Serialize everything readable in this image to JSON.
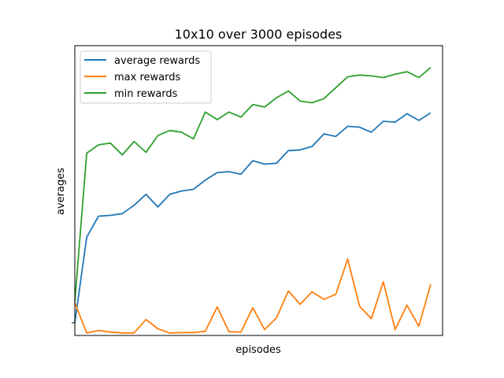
{
  "chart_data": {
    "type": "line",
    "title": "10x10 over 3000 episodes",
    "xlabel": "episodes",
    "ylabel": "averages",
    "xlim": [
      0,
      31
    ],
    "ylim": [
      -1.5,
      33
    ],
    "x_ticks_shown": false,
    "y_ticks_shown": false,
    "y_tick_marks": [
      0
    ],
    "grid": false,
    "legend_position": "upper-left",
    "x": [
      0,
      1,
      2,
      3,
      4,
      5,
      6,
      7,
      8,
      9,
      10,
      11,
      12,
      13,
      14,
      15,
      16,
      17,
      18,
      19,
      20,
      21,
      22,
      23,
      24,
      25,
      26,
      27,
      28,
      29,
      30
    ],
    "series": [
      {
        "name": "average rewards",
        "color": "#1f77b4",
        "values": [
          0,
          10.2,
          12.7,
          12.8,
          13.0,
          14.0,
          15.3,
          13.8,
          15.3,
          15.7,
          15.9,
          17.0,
          17.9,
          18.0,
          17.7,
          19.3,
          18.9,
          19.0,
          20.5,
          20.6,
          21.0,
          22.5,
          22.2,
          23.4,
          23.3,
          22.7,
          24.0,
          23.9,
          24.9,
          24.1,
          25.0
        ]
      },
      {
        "name": "max rewards",
        "color": "#ff7f0e",
        "values": [
          2.4,
          -1.2,
          -0.9,
          -1.1,
          -1.2,
          -1.2,
          0.4,
          -0.7,
          -1.2,
          -1.15,
          -1.15,
          -1.0,
          1.9,
          -1.05,
          -1.1,
          1.8,
          -0.8,
          0.6,
          3.8,
          2.2,
          3.7,
          2.8,
          3.4,
          7.6,
          2.0,
          0.5,
          4.9,
          -0.8,
          2.1,
          -0.4,
          4.6
        ]
      },
      {
        "name": "min rewards",
        "color": "#2ca02c",
        "values": [
          2.5,
          20.2,
          21.2,
          21.4,
          20.0,
          21.6,
          20.3,
          22.3,
          22.9,
          22.7,
          21.9,
          25.1,
          24.2,
          25.1,
          24.5,
          26.0,
          25.7,
          26.8,
          27.6,
          26.4,
          26.2,
          26.7,
          28.0,
          29.3,
          29.5,
          29.4,
          29.2,
          29.6,
          29.9,
          29.2,
          30.4
        ]
      }
    ]
  }
}
